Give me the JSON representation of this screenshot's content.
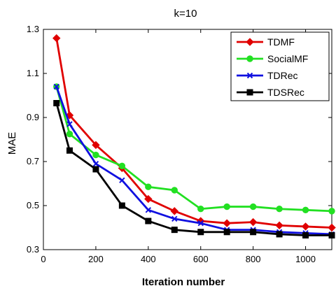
{
  "chart_data": {
    "type": "line",
    "title": "k=10",
    "xlabel": "Iteration number",
    "ylabel": "MAE",
    "xlim": [
      0,
      1100
    ],
    "ylim": [
      0.3,
      1.3
    ],
    "xticks": [
      0,
      200,
      400,
      600,
      800,
      1000
    ],
    "yticks": [
      0.3,
      0.5,
      0.7,
      0.9,
      1.1,
      1.3
    ],
    "xtick_labels": [
      "0",
      "200",
      "400",
      "600",
      "800",
      "1000"
    ],
    "ytick_labels": [
      "0.3",
      "0.5",
      "0.7",
      "0.9",
      "1.1",
      "1.3"
    ],
    "grid": false,
    "legend_position": "top-right",
    "x": [
      50,
      100,
      200,
      300,
      400,
      500,
      600,
      700,
      800,
      900,
      1000,
      1100
    ],
    "series": [
      {
        "name": "TDMF",
        "color": "#e00000",
        "marker": "diamond",
        "values": [
          1.26,
          0.91,
          0.775,
          0.67,
          0.53,
          0.475,
          0.43,
          0.42,
          0.425,
          0.41,
          0.405,
          0.4
        ]
      },
      {
        "name": "SocialMF",
        "color": "#22e022",
        "marker": "circle",
        "values": [
          1.04,
          0.825,
          0.73,
          0.68,
          0.585,
          0.57,
          0.485,
          0.495,
          0.495,
          0.485,
          0.48,
          0.475
        ]
      },
      {
        "name": "TDRec",
        "color": "#1010e0",
        "marker": "x",
        "values": [
          1.04,
          0.87,
          0.69,
          0.615,
          0.48,
          0.44,
          0.42,
          0.39,
          0.39,
          0.38,
          0.375,
          0.37
        ]
      },
      {
        "name": "TDSRec",
        "color": "#000000",
        "marker": "square",
        "values": [
          0.965,
          0.75,
          0.665,
          0.5,
          0.43,
          0.39,
          0.38,
          0.38,
          0.38,
          0.37,
          0.365,
          0.365
        ]
      }
    ]
  }
}
